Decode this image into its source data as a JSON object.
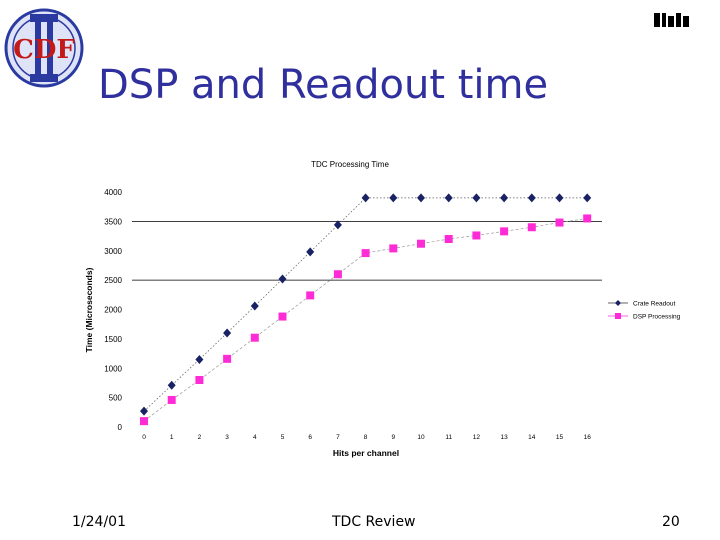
{
  "slide": {
    "title": "DSP and Readout time",
    "logo_text": "CDF",
    "footer_date": "1/24/01",
    "footer_center": "TDC Review",
    "page_number": "20"
  },
  "colors": {
    "title": "#2f2f9e",
    "series_crate": "#1a2266",
    "series_dsp": "#ff2bd6",
    "logo_blue": "#2b3aa0",
    "logo_red": "#c21a1a"
  },
  "chart_data": {
    "type": "line",
    "title": "TDC Processing Time",
    "xlabel": "Hits per channel",
    "ylabel": "Time (Microseconds)",
    "ylim": [
      0,
      4000
    ],
    "yticks": [
      0,
      500,
      1000,
      1500,
      2000,
      2500,
      3000,
      3500,
      4000
    ],
    "x": [
      0,
      1,
      2,
      3,
      4,
      5,
      6,
      7,
      8,
      9,
      10,
      11,
      12,
      13,
      14,
      15,
      16
    ],
    "grid_lines_y": [
      2500,
      3500
    ],
    "legend_position": "right",
    "series": [
      {
        "name": "Crate Readout",
        "marker": "diamond",
        "color": "#1a2266",
        "values": [
          270,
          710,
          1150,
          1600,
          2060,
          2520,
          2980,
          3440,
          3900,
          3900,
          3900,
          3900,
          3900,
          3900,
          3900,
          3900,
          3900
        ]
      },
      {
        "name": "DSP Processing",
        "marker": "square",
        "color": "#ff2bd6",
        "values": [
          100,
          460,
          800,
          1160,
          1520,
          1880,
          2240,
          2600,
          2960,
          3040,
          3120,
          3200,
          3260,
          3330,
          3400,
          3480,
          3550
        ]
      }
    ]
  }
}
